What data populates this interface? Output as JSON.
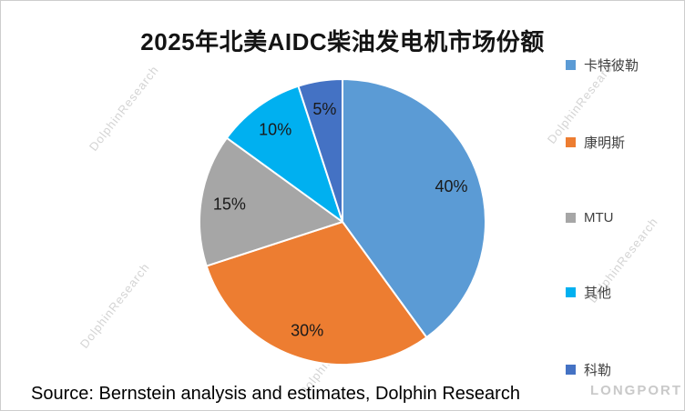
{
  "chart_data": {
    "type": "pie",
    "title": "2025年北美AIDC柴油发电机市场份额",
    "categories": [
      "卡特彼勒",
      "康明斯",
      "MTU",
      "其他",
      "科勒"
    ],
    "values": [
      40,
      30,
      15,
      10,
      5
    ],
    "labels": [
      "40%",
      "30%",
      "15%",
      "10%",
      "5%"
    ],
    "colors": [
      "#5B9BD5",
      "#ED7D31",
      "#A6A6A6",
      "#00B0F0",
      "#4472C4"
    ],
    "legend_position": "right",
    "start_angle_deg": 0,
    "direction": "clockwise"
  },
  "source_note": "Source: Bernstein analysis and estimates, Dolphin Research",
  "watermarks": {
    "text": "DolphinResearch",
    "brand": "LONGPORT"
  }
}
